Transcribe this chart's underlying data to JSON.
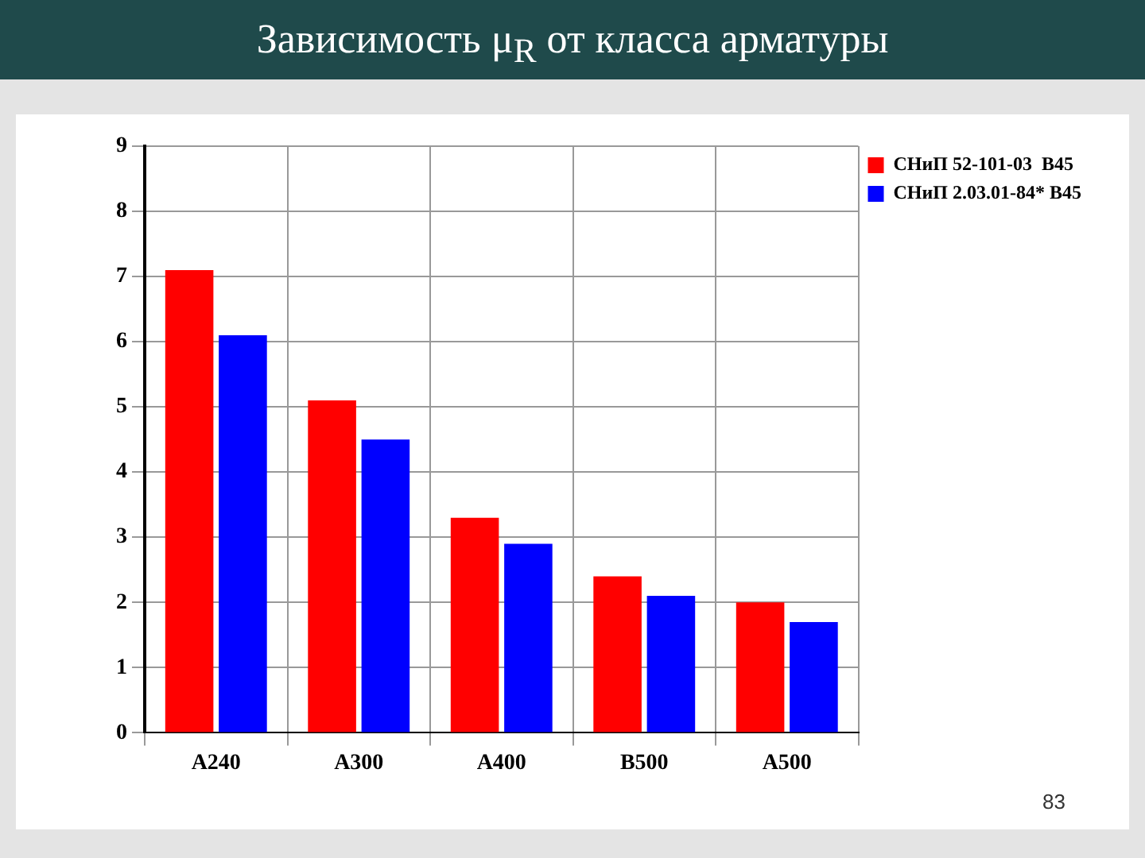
{
  "chart_data": {
    "type": "bar",
    "title": "Зависимость μ$_{R}$ от класса арматуры",
    "categories": [
      "A240",
      "A300",
      "A400",
      "B500",
      "A500"
    ],
    "series": [
      {
        "name": "СНиП 52-101-03  В45",
        "color": "#ff0000",
        "values": [
          7.1,
          5.1,
          3.3,
          2.4,
          2.0
        ]
      },
      {
        "name": "СНиП 2.03.01-84* В45",
        "color": "#0000ff",
        "values": [
          6.1,
          4.5,
          2.9,
          2.1,
          1.7
        ]
      }
    ],
    "ylim": [
      0,
      9
    ],
    "yticks": [
      0,
      1,
      2,
      3,
      4,
      5,
      6,
      7,
      8,
      9
    ],
    "grid": true,
    "legend": "top right",
    "annotations": [
      "83"
    ]
  }
}
